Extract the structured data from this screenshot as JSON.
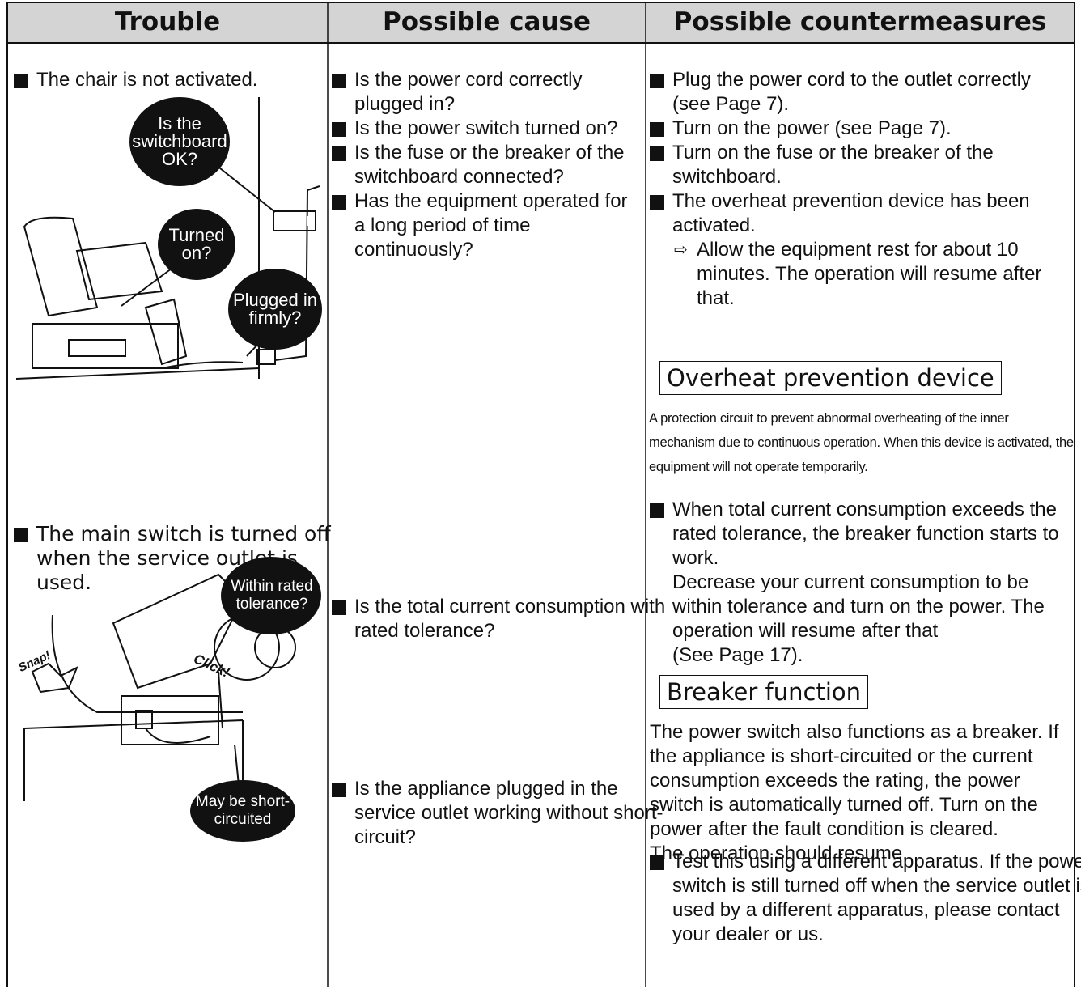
{
  "header": {
    "columns": [
      "Trouble",
      "Possible cause",
      "Possible countermeasures"
    ]
  },
  "rows": [
    {
      "trouble": "The chair is not activated.",
      "illustration_labels": [
        "Is the switchboard OK?",
        "Turned on?",
        "Plugged in firmly?"
      ],
      "causes": [
        {
          "text": "Is the power cord correctly plugged in?"
        },
        {
          "text": "Is the power switch turned on?"
        },
        {
          "text": "Is the fuse or the breaker of the switchboard connected?"
        },
        {
          "text": "Has the equipment operated for a long period of time continuously?"
        }
      ],
      "countermeasures": [
        {
          "text": "Plug the power cord to the outlet correctly (see Page 7)."
        },
        {
          "text": "Turn on the power (see Page 7)."
        },
        {
          "text": "Turn on the fuse or the breaker of the switchboard."
        },
        {
          "text": "The overheat prevention device has been activated.",
          "sub": "Allow the equipment rest for about 10 minutes. The operation will resume after that."
        }
      ],
      "box_title": "Overheat prevention device",
      "box_text": "A protection circuit to prevent abnormal overheating of the inner mechanism due to continuous operation. When this device is activated, the equipment will not operate temporarily."
    },
    {
      "trouble": "The main switch is turned off when the service outlet is used.",
      "illustration_labels": [
        "Within rated tolerance?",
        "May be short-circuited",
        "Click!",
        "Snap!"
      ],
      "causes": [
        {
          "text": "Is the total current consumption with rated tolerance?"
        },
        {
          "text": "Is the appliance plugged in the service outlet working without short-circuit?"
        }
      ],
      "countermeasures": [
        {
          "text": "When total current consumption exceeds the rated tolerance, the breaker function starts to work.",
          "continuation": [
            "Decrease your current consumption to be within tolerance and turn on the power. The operation will resume after that",
            "(See Page 17)."
          ]
        },
        {
          "text": "Test this using a different apparatus. If the power switch is still turned off when the service outlet is used by a different apparatus, please contact your dealer or us."
        }
      ],
      "box_title": "Breaker function",
      "box_text": [
        "The power switch also functions as a breaker. If the appliance is short-circuited or the current consumption exceeds the rating, the power switch is automatically turned off. Turn on the power after the fault condition is cleared.",
        "The operation should resume."
      ]
    }
  ]
}
